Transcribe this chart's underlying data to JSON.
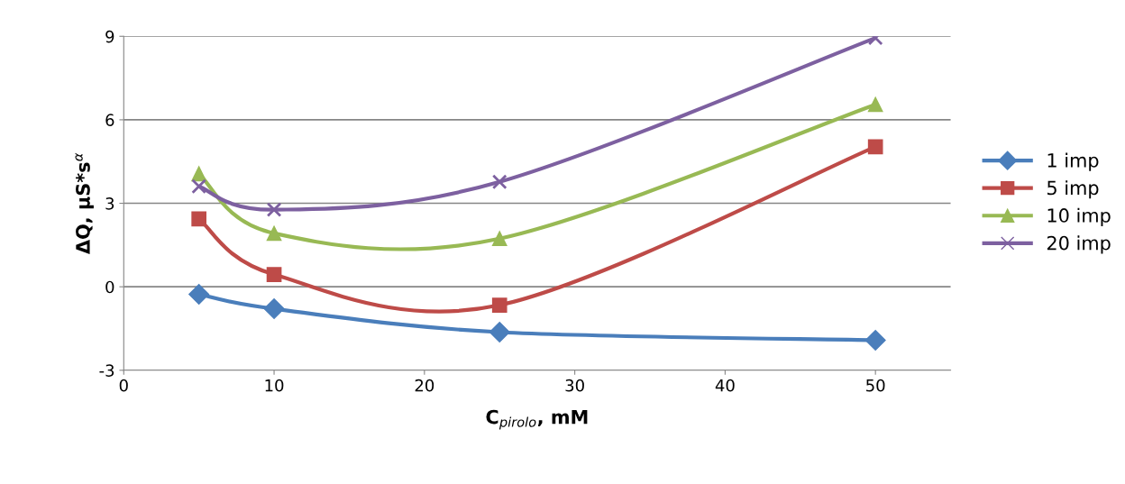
{
  "chart_data": {
    "type": "line",
    "xlabel": "C$_{pirolo}$, mM",
    "ylabel": "ΔQ, μS*s$^{α}$",
    "x": [
      5,
      10,
      25,
      50
    ],
    "series": [
      {
        "name": "1 imp",
        "color": "#4a7ebb",
        "marker": "diamond",
        "values": [
          -0.27,
          -0.79,
          -1.63,
          -1.92
        ]
      },
      {
        "name": "5 imp",
        "color": "#be4b48",
        "marker": "square",
        "values": [
          2.44,
          0.44,
          -0.66,
          5.03
        ]
      },
      {
        "name": "10 imp",
        "color": "#98b954",
        "marker": "triangle",
        "values": [
          4.06,
          1.92,
          1.73,
          6.55
        ]
      },
      {
        "name": "20 imp",
        "color": "#7d60a0",
        "marker": "cross",
        "values": [
          3.61,
          2.77,
          3.77,
          8.94
        ]
      }
    ],
    "xlim": [
      0,
      55
    ],
    "xticks": [
      0,
      10,
      20,
      30,
      40,
      50
    ],
    "ylim": [
      -3,
      9
    ],
    "yticks": [
      -3,
      0,
      3,
      6,
      9
    ],
    "grid": "y",
    "legend": "right",
    "line_style": "solid"
  }
}
